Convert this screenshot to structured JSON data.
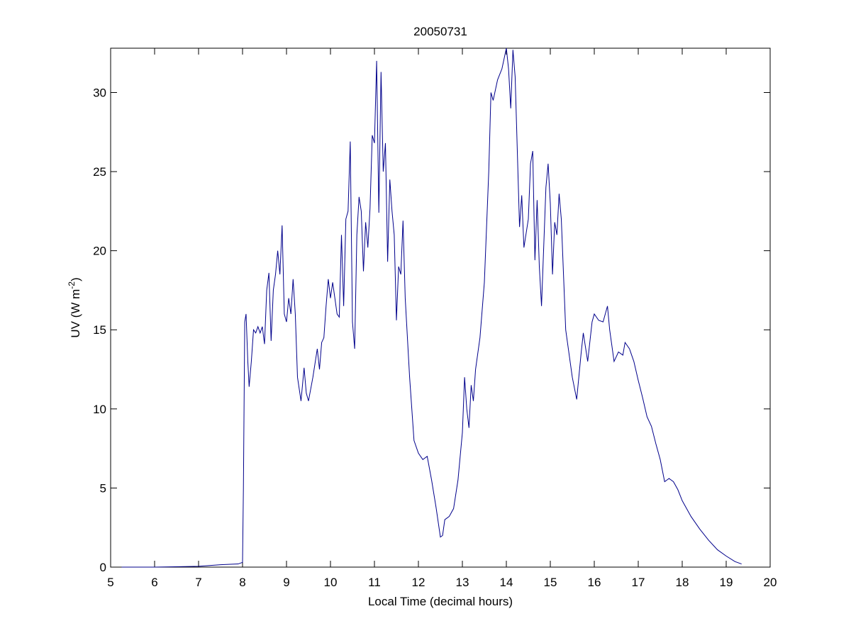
{
  "chart_data": {
    "type": "line",
    "title": "20050731",
    "xlabel": "Local Time (decimal hours)",
    "ylabel": [
      "UV (W m",
      "-2",
      ")"
    ],
    "xlim": [
      5,
      20
    ],
    "xticks": [
      5,
      6,
      7,
      8,
      9,
      10,
      11,
      12,
      13,
      14,
      15,
      16,
      17,
      18,
      19,
      20
    ],
    "ylim": [
      0,
      32.8
    ],
    "yticks": [
      0,
      5,
      10,
      15,
      20,
      25,
      30
    ],
    "grid": false,
    "series": [
      {
        "color": "#00008b",
        "x": [
          5.25,
          6,
          7,
          7.5,
          7.9,
          8.0,
          8.02,
          8.05,
          8.08,
          8.12,
          8.15,
          8.2,
          8.25,
          8.3,
          8.35,
          8.4,
          8.45,
          8.5,
          8.55,
          8.6,
          8.65,
          8.7,
          8.75,
          8.8,
          8.85,
          8.9,
          8.95,
          9.0,
          9.05,
          9.1,
          9.15,
          9.2,
          9.25,
          9.33,
          9.4,
          9.45,
          9.5,
          9.6,
          9.7,
          9.75,
          9.8,
          9.85,
          9.9,
          9.95,
          10.0,
          10.05,
          10.1,
          10.15,
          10.2,
          10.25,
          10.3,
          10.35,
          10.4,
          10.45,
          10.5,
          10.55,
          10.6,
          10.65,
          10.7,
          10.75,
          10.8,
          10.85,
          10.9,
          10.95,
          11.0,
          11.05,
          11.1,
          11.15,
          11.2,
          11.25,
          11.3,
          11.35,
          11.4,
          11.45,
          11.5,
          11.55,
          11.6,
          11.65,
          11.7,
          11.8,
          11.9,
          12.0,
          12.1,
          12.2,
          12.3,
          12.4,
          12.5,
          12.55,
          12.6,
          12.7,
          12.8,
          12.9,
          13.0,
          13.05,
          13.1,
          13.15,
          13.2,
          13.25,
          13.3,
          13.4,
          13.5,
          13.6,
          13.65,
          13.7,
          13.8,
          13.9,
          14.0,
          14.05,
          14.1,
          14.15,
          14.2,
          14.3,
          14.35,
          14.4,
          14.5,
          14.55,
          14.6,
          14.65,
          14.7,
          14.75,
          14.8,
          14.9,
          14.95,
          15.0,
          15.05,
          15.1,
          15.15,
          15.2,
          15.25,
          15.35,
          15.5,
          15.6,
          15.7,
          15.75,
          15.85,
          15.95,
          16.0,
          16.1,
          16.2,
          16.3,
          16.35,
          16.45,
          16.55,
          16.65,
          16.7,
          16.8,
          16.9,
          17.0,
          17.1,
          17.2,
          17.3,
          17.4,
          17.5,
          17.6,
          17.7,
          17.8,
          17.9,
          18.0,
          18.2,
          18.4,
          18.6,
          18.8,
          19.0,
          19.2,
          19.35
        ],
        "values": [
          0,
          0,
          0.05,
          0.15,
          0.2,
          0.3,
          5,
          15.5,
          16,
          13,
          11.4,
          13,
          15,
          14.8,
          15.2,
          14.8,
          15.2,
          14.1,
          17.5,
          18.6,
          14.3,
          17.5,
          18.5,
          20,
          18.5,
          21.6,
          16,
          15.5,
          17,
          16,
          18.2,
          16,
          12,
          10.5,
          12.6,
          11,
          10.5,
          12,
          13.8,
          12.5,
          14.2,
          14.5,
          16.5,
          18.2,
          17,
          18,
          17,
          16,
          15.8,
          21,
          16.5,
          22,
          22.5,
          26.9,
          15.5,
          13.8,
          21,
          23.4,
          22.5,
          18.7,
          21.8,
          20.2,
          22.7,
          27.3,
          26.8,
          32,
          22.4,
          31.3,
          25,
          26.8,
          19.3,
          24.5,
          22.5,
          21,
          15.6,
          19,
          18.5,
          21.9,
          17,
          12,
          8,
          7.2,
          6.8,
          7,
          5.5,
          3.8,
          1.9,
          2,
          3,
          3.2,
          3.7,
          5.5,
          8.5,
          12,
          10,
          8.8,
          11.5,
          10.5,
          12.5,
          14.5,
          18,
          25,
          30,
          29.5,
          30.8,
          31.5,
          32.8,
          31.5,
          29,
          32.7,
          31,
          21.5,
          23.5,
          20.2,
          22,
          25.5,
          26.3,
          19.4,
          23.2,
          19,
          16.5,
          24,
          25.5,
          23,
          18.5,
          21.8,
          21,
          23.6,
          22,
          15,
          12,
          10.6,
          13.5,
          14.8,
          13,
          15.5,
          16,
          15.6,
          15.5,
          16.5,
          15,
          13,
          13.6,
          13.4,
          14.2,
          13.8,
          13,
          11.8,
          10.7,
          9.5,
          8.9,
          7.8,
          6.8,
          5.4,
          5.6,
          5.4,
          4.9,
          4.2,
          3.2,
          2.4,
          1.7,
          1.1,
          0.7,
          0.35,
          0.2
        ]
      }
    ]
  }
}
